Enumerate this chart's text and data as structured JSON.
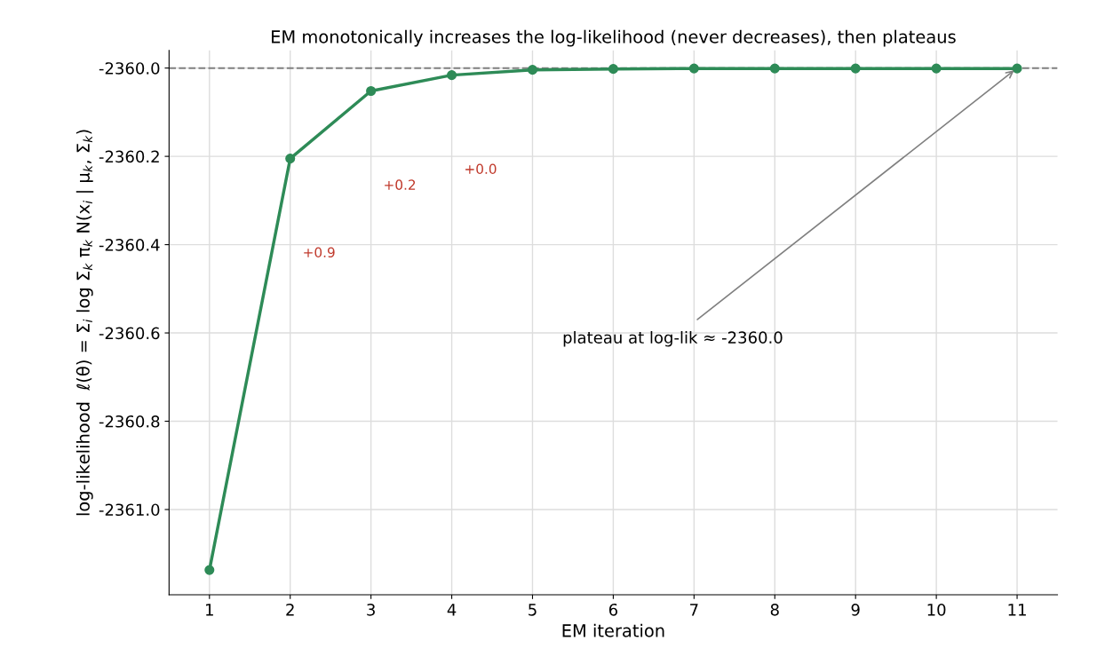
{
  "chart_data": {
    "type": "line",
    "title": "EM monotonically increases the log-likelihood (never decreases), then plateaus",
    "xlabel": "EM iteration",
    "ylabel": "log-likelihood  ℓ(θ) = Σ$_{i}$ log Σ$_{k}$ π$_{k}$ N(x$_{i}$ | μ$_{k}$, Σ$_{k}$)",
    "x": [
      1,
      2,
      3,
      4,
      5,
      6,
      7,
      8,
      9,
      10,
      11
    ],
    "series": [
      {
        "color": "#2e8b57",
        "values": [
          -2361.137,
          -2360.205,
          -2360.052,
          -2360.016,
          -2360.004,
          -2360.002,
          -2360.001,
          -2360.001,
          -2360.001,
          -2360.001,
          -2360.001
        ]
      }
    ],
    "marker": "circle",
    "line_style": "solid",
    "grid": true,
    "xlim": [
      0.5,
      11.5
    ],
    "xticks": [
      1,
      2,
      3,
      4,
      5,
      6,
      7,
      8,
      9,
      10,
      11
    ],
    "ylim": [
      -2361.193,
      -2359.96
    ],
    "yticks": [
      {
        "value": -2361.0,
        "label": "-2361.0"
      },
      {
        "value": -2360.8,
        "label": "-2360.8"
      },
      {
        "value": -2360.6,
        "label": "-2360.6"
      },
      {
        "value": -2360.4,
        "label": "-2360.4"
      },
      {
        "value": -2360.2,
        "label": "-2360.2"
      },
      {
        "value": -2360.0,
        "label": "-2360.0"
      }
    ],
    "ref_lines": [
      {
        "axis": "y",
        "value": -2360.0,
        "color": "#808080",
        "line_style": "dashed"
      }
    ],
    "annotations": [
      "+0.9",
      "+0.2",
      "+0.0",
      {
        "text": "plateau at log-lik ≈ -2360.0",
        "x": 11,
        "y": -2360.0
      }
    ]
  }
}
